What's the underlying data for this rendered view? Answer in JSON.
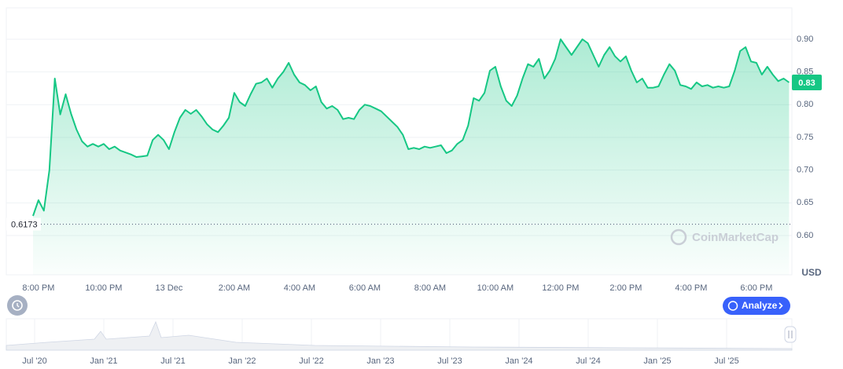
{
  "chart_data": {
    "type": "line",
    "color": "#16c784",
    "categories": [
      null,
      "8:00 PM",
      null,
      null,
      null,
      null,
      null,
      null,
      null,
      null,
      null,
      null,
      null,
      "10:00 PM",
      null,
      null,
      null,
      null,
      null,
      null,
      null,
      null,
      null,
      null,
      null,
      "13 Dec",
      null,
      null,
      null,
      null,
      null,
      null,
      null,
      null,
      null,
      null,
      null,
      "2:00 AM",
      null,
      null,
      null,
      null,
      null,
      null,
      null,
      null,
      null,
      null,
      null,
      "4:00 AM",
      null,
      null,
      null,
      null,
      null,
      null,
      null,
      null,
      null,
      null,
      null,
      "6:00 AM",
      null,
      null,
      null,
      null,
      null,
      null,
      null,
      null,
      null,
      null,
      null,
      "8:00 AM",
      null,
      null,
      null,
      null,
      null,
      null,
      null,
      null,
      null,
      null,
      null,
      "10:00 AM",
      null,
      null,
      null,
      null,
      null,
      null,
      null,
      null,
      null,
      null,
      null,
      "12:00 PM",
      null,
      null,
      null,
      null,
      null,
      null,
      null,
      null,
      null,
      null,
      null,
      "2:00 PM",
      null,
      null,
      null,
      null,
      null,
      null,
      null,
      null,
      null,
      null,
      null,
      "4:00 PM",
      null,
      null,
      null,
      null,
      null,
      null,
      null,
      null,
      null,
      null,
      null,
      "6:00 PM",
      null,
      null,
      null,
      null,
      null,
      null
    ],
    "values": [
      0.63,
      0.654,
      0.638,
      0.7,
      0.84,
      0.785,
      0.816,
      0.786,
      0.762,
      0.744,
      0.736,
      0.74,
      0.736,
      0.74,
      0.732,
      0.736,
      0.73,
      0.727,
      0.724,
      0.72,
      0.721,
      0.722,
      0.746,
      0.754,
      0.746,
      0.732,
      0.758,
      0.78,
      0.792,
      0.786,
      0.792,
      0.782,
      0.77,
      0.762,
      0.758,
      0.768,
      0.78,
      0.818,
      0.804,
      0.798,
      0.816,
      0.832,
      0.834,
      0.84,
      0.826,
      0.84,
      0.85,
      0.864,
      0.846,
      0.834,
      0.83,
      0.822,
      0.828,
      0.804,
      0.794,
      0.798,
      0.792,
      0.778,
      0.78,
      0.778,
      0.792,
      0.8,
      0.798,
      0.794,
      0.79,
      0.782,
      0.774,
      0.766,
      0.754,
      0.732,
      0.734,
      0.732,
      0.736,
      0.734,
      0.736,
      0.738,
      0.726,
      0.73,
      0.74,
      0.746,
      0.768,
      0.81,
      0.806,
      0.818,
      0.852,
      0.858,
      0.828,
      0.806,
      0.798,
      0.814,
      0.84,
      0.862,
      0.858,
      0.87,
      0.84,
      0.852,
      0.87,
      0.9,
      0.888,
      0.876,
      0.888,
      0.9,
      0.894,
      0.876,
      0.858,
      0.876,
      0.888,
      0.874,
      0.866,
      0.874,
      0.852,
      0.834,
      0.84,
      0.826,
      0.826,
      0.828,
      0.846,
      0.862,
      0.852,
      0.83,
      0.828,
      0.824,
      0.834,
      0.828,
      0.83,
      0.826,
      0.828,
      0.826,
      0.828,
      0.852,
      0.882,
      0.888,
      0.866,
      0.864,
      0.846,
      0.858,
      0.846,
      0.836,
      0.84,
      0.834
    ],
    "ylim": [
      0.54,
      0.948
    ],
    "yticks": [
      {
        "value": 0.6,
        "label": "0.60"
      },
      {
        "value": 0.65,
        "label": "0.65"
      },
      {
        "value": 0.7,
        "label": "0.70"
      },
      {
        "value": 0.75,
        "label": "0.75"
      },
      {
        "value": 0.8,
        "label": "0.80"
      },
      {
        "value": 0.85,
        "label": "0.85"
      },
      {
        "value": 0.9,
        "label": "0.90"
      }
    ],
    "grid": true,
    "y_unit": "USD",
    "reference_line": {
      "value": 0.6173,
      "label": "0.6173"
    },
    "last_price_label": "0.83",
    "watermark": "CoinMarketCap",
    "analyze_button": "Analyze",
    "navigator_labels": [
      "Jul '20",
      "Jan '21",
      "Jul '21",
      "Jan '22",
      "Jul '22",
      "Jan '23",
      "Jul '23",
      "Jan '24",
      "Jul '24",
      "Jan '25",
      "Jul '25"
    ]
  }
}
